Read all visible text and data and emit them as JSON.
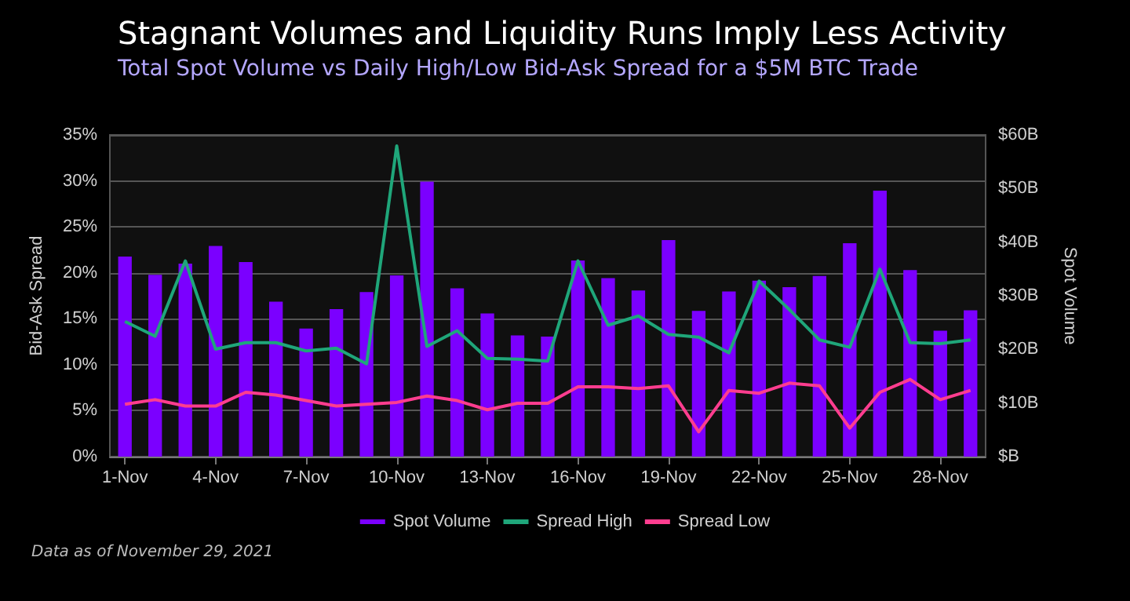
{
  "chart_data": {
    "type": "bar",
    "title": "Stagnant Volumes and Liquidity Runs Imply Less Activity",
    "subtitle": "Total Spot Volume vs Daily High/Low Bid-Ask Spread for a $5M BTC Trade",
    "ylabel": "Bid-Ask Spread",
    "y2label": "Spot Volume",
    "categories": [
      "1-Nov",
      null,
      null,
      "4-Nov",
      null,
      null,
      "7-Nov",
      null,
      null,
      "10-Nov",
      null,
      null,
      "13-Nov",
      null,
      null,
      "16-Nov",
      null,
      null,
      "19-Nov",
      null,
      null,
      "22-Nov",
      null,
      null,
      "25-Nov",
      null,
      null,
      "28-Nov",
      null
    ],
    "series": [
      {
        "name": "Spot Volume",
        "axis": "y2",
        "color": "#7b00ff",
        "values": [
          37.3,
          33.9,
          36,
          39.3,
          36.3,
          28.9,
          23.9,
          27.5,
          30.7,
          33.8,
          51.3,
          31.4,
          26.7,
          22.6,
          22.4,
          36.6,
          33.3,
          31,
          40.4,
          27.2,
          30.8,
          32.8,
          31.6,
          33.7,
          39.8,
          49.6,
          34.8,
          23.5,
          27.3
        ]
      },
      {
        "name": "Spread High",
        "type": "line",
        "color": "#1fa67a",
        "values": [
          14.7,
          13.1,
          21.3,
          11.7,
          12.4,
          12.4,
          11.5,
          11.8,
          10.1,
          33.8,
          12,
          13.7,
          10.7,
          10.6,
          10.4,
          21.3,
          14.3,
          15.3,
          13.3,
          13,
          11.3,
          19.1,
          16,
          12.7,
          11.9,
          20.4,
          12.4,
          12.3,
          12.7
        ]
      },
      {
        "name": "Spread Low",
        "type": "line",
        "color": "#ff3d8f",
        "values": [
          5.7,
          6.2,
          5.5,
          5.5,
          7,
          6.7,
          6.1,
          5.5,
          5.7,
          5.9,
          6.6,
          6.1,
          5.1,
          5.8,
          5.8,
          7.6,
          7.6,
          7.4,
          7.7,
          2.7,
          7.2,
          6.9,
          8,
          7.7,
          3.1,
          7,
          8.4,
          6.2,
          7.2
        ]
      }
    ],
    "ylim": [
      0,
      35
    ],
    "yticks": [
      {
        "value": 0,
        "label": "0%"
      },
      {
        "value": 5,
        "label": "5%"
      },
      {
        "value": 10,
        "label": "10%"
      },
      {
        "value": 15,
        "label": "15%"
      },
      {
        "value": 20,
        "label": "20%"
      },
      {
        "value": 25,
        "label": "25%"
      },
      {
        "value": 30,
        "label": "30%"
      },
      {
        "value": 35,
        "label": "35%"
      }
    ],
    "y2lim": [
      0,
      60
    ],
    "y2ticks": [
      {
        "value": 0,
        "label": "$B"
      },
      {
        "value": 10,
        "label": "$10B"
      },
      {
        "value": 20,
        "label": "$20B"
      },
      {
        "value": 30,
        "label": "$30B"
      },
      {
        "value": 40,
        "label": "$40B"
      },
      {
        "value": 50,
        "label": "$50B"
      },
      {
        "value": 60,
        "label": "$60B"
      }
    ],
    "grid": "y",
    "legend": "bottom",
    "marker": "none",
    "line_style": "solid",
    "annotations": [
      "Data as of November 29, 2021"
    ]
  }
}
